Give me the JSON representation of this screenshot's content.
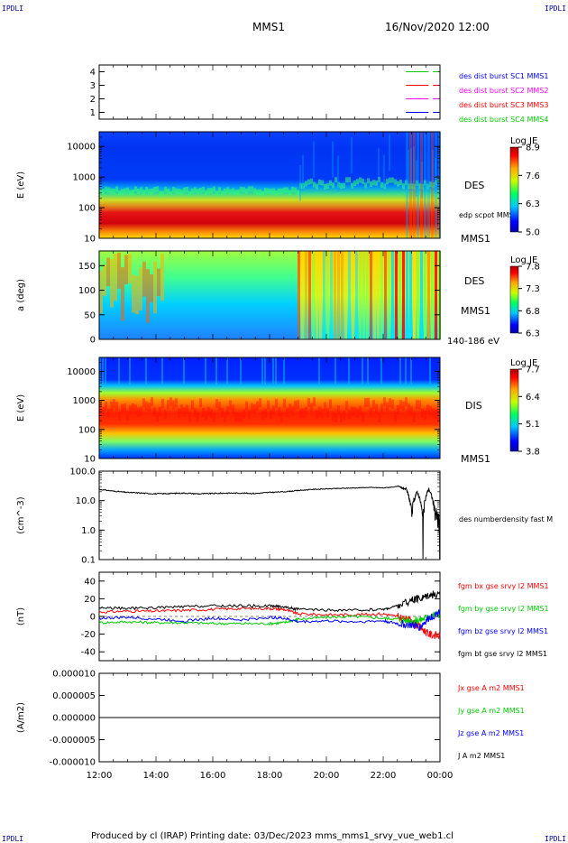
{
  "header": {
    "corner_label": "IPDLI",
    "spacecraft": "MMS1",
    "datetime": "16/Nov/2020 12:00"
  },
  "footer": {
    "text": "Produced by cl (IRAP)   Printing date: 03/Dec/2023   mms_mms1_srvy_vue_web1.cl"
  },
  "colors": {
    "red": "#ff0000",
    "green": "#00cc00",
    "blue": "#0000ff",
    "magenta": "#ff00ff",
    "black": "#000000"
  },
  "chart_data": [
    {
      "type": "line",
      "panel": "burst-availability",
      "ylim": [
        0.5,
        4.5
      ],
      "yticks": [
        "1",
        "2",
        "3",
        "4"
      ],
      "legend": [
        {
          "label": "des dist burst SC1 MMS1",
          "color": "#0000ff"
        },
        {
          "label": "des dist burst SC2 MMS2",
          "color": "#ff00ff"
        },
        {
          "label": "des dist burst SC3 MMS3",
          "color": "#ff0000"
        },
        {
          "label": "des dist burst SC4 MMS4",
          "color": "#00cc00"
        }
      ],
      "series": [
        {
          "level": 4,
          "color": "#00cc00",
          "x": [
            "23:00",
            "23:30"
          ]
        },
        {
          "level": 3,
          "color": "#ff0000",
          "x": [
            "23:00",
            "23:30"
          ]
        },
        {
          "level": 2,
          "color": "#ff00ff",
          "x": [
            "23:00",
            "23:30"
          ]
        },
        {
          "level": 1,
          "color": "#0000ff",
          "x": [
            "23:00",
            "23:30"
          ]
        }
      ]
    },
    {
      "type": "heatmap",
      "panel": "des-energy",
      "ylabel": "E (eV)",
      "yscale": "log",
      "ylim": [
        10,
        30000
      ],
      "yticks": [
        "10",
        "100",
        "1000",
        "10000"
      ],
      "right_labels": [
        "DES",
        "edp scpot MMS1",
        "MMS1"
      ],
      "colorbar": {
        "title": "Log JE",
        "min": 5.0,
        "max": 8.9,
        "ticks": [
          "8.9",
          "7.6",
          "6.3",
          "5.0"
        ]
      }
    },
    {
      "type": "heatmap",
      "panel": "des-pitch",
      "ylabel": "a (deg)",
      "ylim": [
        0,
        180
      ],
      "yticks": [
        "0",
        "50",
        "100",
        "150"
      ],
      "right_labels": [
        "DES",
        "MMS1",
        "140-186 eV"
      ],
      "colorbar": {
        "title": "Log JE",
        "min": 6.3,
        "max": 7.8,
        "ticks": [
          "7.8",
          "7.3",
          "6.8",
          "6.3"
        ]
      }
    },
    {
      "type": "heatmap",
      "panel": "dis-energy",
      "ylabel": "E (eV)",
      "yscale": "log",
      "ylim": [
        10,
        30000
      ],
      "yticks": [
        "10",
        "100",
        "1000",
        "10000"
      ],
      "right_labels": [
        "DIS",
        "MMS1"
      ],
      "colorbar": {
        "title": "Log JE",
        "min": 3.8,
        "max": 7.7,
        "ticks": [
          "7.7",
          "6.4",
          "5.1",
          "3.8"
        ]
      }
    },
    {
      "type": "line",
      "panel": "density",
      "ylabel": "(cm^-3)",
      "yscale": "log",
      "ylim": [
        0.1,
        100
      ],
      "yticks": [
        "0.1",
        "1.0",
        "10.0",
        "100.0"
      ],
      "right_labels": [
        "des numberdensity fast M"
      ],
      "series": [
        {
          "name": "des numberdensity fast M",
          "color": "#000000",
          "x": [
            0,
            0.5,
            1,
            1.5,
            2,
            2.5,
            3,
            3.5,
            4,
            4.5,
            5,
            5.5,
            6,
            6.5,
            7,
            7.5,
            8,
            8.5,
            9,
            9.5,
            10,
            10.5,
            10.8,
            11,
            11.2,
            11.4,
            11.6,
            11.8,
            12
          ],
          "y": [
            24,
            21,
            19,
            18,
            17,
            17.5,
            18,
            17,
            17.5,
            18,
            18,
            17.5,
            19,
            20,
            22,
            24,
            25,
            26,
            27,
            28,
            27,
            30,
            25,
            3,
            20,
            0.8,
            25,
            5,
            0.7
          ]
        }
      ]
    },
    {
      "type": "line",
      "panel": "magnetic-field",
      "ylabel": "(nT)",
      "ylim": [
        -50,
        50
      ],
      "yticks": [
        "-40",
        "-20",
        "0",
        "20",
        "40"
      ],
      "legend": [
        {
          "label": "fgm bx gse srvy l2 MMS1",
          "color": "#ff0000"
        },
        {
          "label": "fgm by gse srvy l2 MMS1",
          "color": "#00cc00"
        },
        {
          "label": "fgm bz gse srvy l2 MMS1",
          "color": "#0000ff"
        },
        {
          "label": "fgm bt gse srvy l2 MMS1",
          "color": "#000000"
        }
      ],
      "series": [
        {
          "name": "fgm bx gse srvy l2 MMS1",
          "color": "#ff0000",
          "x": [
            0,
            1,
            2,
            3,
            4,
            5,
            6,
            6.5,
            7,
            8,
            9,
            10,
            10.5,
            11,
            11.3,
            11.6,
            12
          ],
          "y": [
            5,
            6,
            6,
            7,
            8,
            9,
            9,
            8,
            3,
            2,
            2,
            3,
            0,
            -5,
            -12,
            -20,
            -22
          ]
        },
        {
          "name": "fgm by gse srvy l2 MMS1",
          "color": "#00cc00",
          "x": [
            0,
            1,
            2,
            3,
            4,
            5,
            6,
            6.5,
            7,
            8,
            9,
            10,
            10.5,
            11,
            11.3,
            11.6,
            12
          ],
          "y": [
            -7,
            -6,
            -7,
            -7,
            -8,
            -8,
            -8,
            -7,
            -3,
            -1,
            0,
            -2,
            -3,
            -5,
            -4,
            0,
            3
          ]
        },
        {
          "name": "fgm bz gse srvy l2 MMS1",
          "color": "#0000ff",
          "x": [
            0,
            1,
            2,
            3,
            4,
            5,
            6,
            6.5,
            7,
            8,
            9,
            10,
            10.5,
            11,
            11.3,
            11.6,
            12
          ],
          "y": [
            -2,
            -1,
            -3,
            -5,
            -2,
            -4,
            -1,
            -2,
            -6,
            -5,
            -6,
            -5,
            -8,
            -10,
            -12,
            -2,
            5
          ]
        },
        {
          "name": "fgm bt gse srvy l2 MMS1",
          "color": "#000000",
          "x": [
            0,
            1,
            2,
            3,
            4,
            5,
            6,
            6.5,
            7,
            8,
            9,
            10,
            10.5,
            11,
            11.3,
            11.6,
            12
          ],
          "y": [
            10,
            9,
            10,
            11,
            12,
            12,
            12,
            11,
            8,
            7,
            7,
            8,
            12,
            18,
            20,
            25,
            24
          ]
        }
      ]
    },
    {
      "type": "line",
      "panel": "current-density",
      "ylabel": "(A/m2)",
      "ylim": [
        -1e-05,
        1e-05
      ],
      "yticks": [
        "-0.000010",
        "-0.000005",
        "0.000000",
        "0.000005",
        "0.000010"
      ],
      "legend": [
        {
          "label": "Jx gse A m2 MMS1",
          "color": "#ff0000"
        },
        {
          "label": "Jy gse A m2 MMS1",
          "color": "#00cc00"
        },
        {
          "label": "Jz gse A m2 MMS1",
          "color": "#0000ff"
        },
        {
          "label": "J A m2 MMS1",
          "color": "#000000"
        }
      ],
      "series": [
        {
          "name": "J A m2 MMS1",
          "color": "#000000",
          "x": [
            0,
            12
          ],
          "y": [
            0,
            0
          ]
        }
      ]
    }
  ],
  "time_axis": {
    "ticks": [
      "12:00",
      "14:00",
      "16:00",
      "18:00",
      "20:00",
      "22:00",
      "00:00"
    ]
  }
}
